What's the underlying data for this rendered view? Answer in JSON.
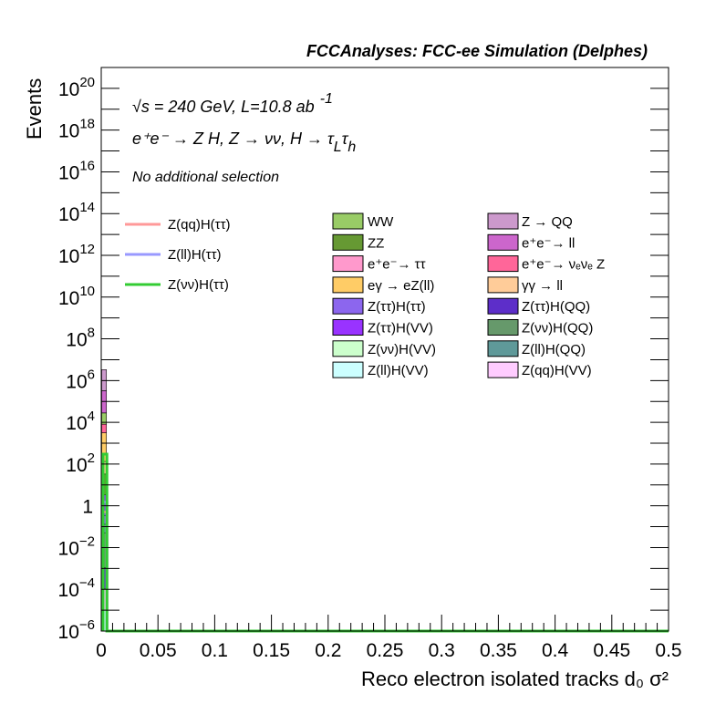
{
  "header": {
    "title": "FCCAnalyses: FCC-ee Simulation (Delphes)"
  },
  "annotations": {
    "energy_lumi": "√s = 240 GeV, L=10.8 ab",
    "energy_lumi_sup": "-1",
    "process": "e⁺e⁻ → Z H, Z → νν, H → τ",
    "process_sub1": "L",
    "process_tau2": "τ",
    "process_sub2": "h",
    "selection": "No additional selection"
  },
  "chart_data": {
    "type": "histogram",
    "title": "",
    "xlabel": "Reco electron isolated tracks d₀ σ²",
    "ylabel": "Events",
    "xlim": [
      0,
      0.5
    ],
    "ylim": [
      1e-06,
      1e+21
    ],
    "yscale": "log",
    "grid": false,
    "x_ticks": [
      "0",
      "0.05",
      "0.1",
      "0.15",
      "0.2",
      "0.25",
      "0.3",
      "0.35",
      "0.4",
      "0.45",
      "0.5"
    ],
    "y_ticks": [
      {
        "base": "10",
        "exp": "−6"
      },
      {
        "base": "10",
        "exp": "−4"
      },
      {
        "base": "10",
        "exp": "−2"
      },
      {
        "base": "1",
        "exp": ""
      },
      {
        "base": "10",
        "exp": "2"
      },
      {
        "base": "10",
        "exp": "4"
      },
      {
        "base": "10",
        "exp": "6"
      },
      {
        "base": "10",
        "exp": "8"
      },
      {
        "base": "10",
        "exp": "10"
      },
      {
        "base": "10",
        "exp": "12"
      },
      {
        "base": "10",
        "exp": "14"
      },
      {
        "base": "10",
        "exp": "16"
      },
      {
        "base": "10",
        "exp": "18"
      },
      {
        "base": "10",
        "exp": "20"
      }
    ],
    "stack_bin": [
      0,
      0.005
    ],
    "stack": [
      {
        "name": "Z(ll)H(VV)",
        "color": "#ccffff",
        "value": 1e-05
      },
      {
        "name": "Z(qq)H(VV)",
        "color": "#ffccff",
        "value": 0.0001
      },
      {
        "name": "Z(ττ)H(QQ)",
        "color": "#5d2ec9",
        "value": 0.001
      },
      {
        "name": "Z(νν)H(QQ)",
        "color": "#66996b",
        "value": 0.05
      },
      {
        "name": "Z(ll)H(QQ)",
        "color": "#5f9999",
        "value": 0.08
      },
      {
        "name": "Z(ττ)H(ττ)",
        "color": "#8c66ee",
        "value": 0.2
      },
      {
        "name": "Z(ττ)H(VV)",
        "color": "#9933ff",
        "value": 3
      },
      {
        "name": "ZZ",
        "color": "#669933",
        "value": 30
      },
      {
        "name": "γγ → ll",
        "color": "#ffcc99",
        "value": 100
      },
      {
        "name": "eγ → eZ(ll)",
        "color": "#ffcc66",
        "value": 3000
      },
      {
        "name": "e⁺e⁻→ ν_e ν_e Z",
        "color": "#ff6699",
        "value": 5000
      },
      {
        "name": "WW",
        "color": "#99cc66",
        "value": 20000
      },
      {
        "name": "e⁺e⁻→ ll",
        "color": "#cc66cc",
        "value": 300000
      },
      {
        "name": "Z → QQ",
        "color": "#cc99cc",
        "value": 3000000
      }
    ],
    "signals": [
      {
        "name": "Z(qq)H(ττ)",
        "color": "#ff9999",
        "value": 0.5
      },
      {
        "name": "Z(ll)H(ττ)",
        "color": "#9999ff",
        "value": 1.5
      },
      {
        "name": "Z(νν)H(ττ)",
        "color": "#33cc33",
        "value": 300
      }
    ],
    "legend_signals": [
      {
        "label": "Z(qq)H(ττ)",
        "color": "#ff9999"
      },
      {
        "label": "Z(ll)H(ττ)",
        "color": "#9999ff"
      },
      {
        "label": "Z(νν)H(ττ)",
        "color": "#33cc33"
      }
    ],
    "legend_col1": [
      {
        "label": "WW",
        "color": "#99cc66"
      },
      {
        "label": "ZZ",
        "color": "#669933"
      },
      {
        "label": "e⁺e⁻→ ττ",
        "color": "#ff99cc"
      },
      {
        "label": "eγ → eZ(ll)",
        "color": "#ffcc66"
      },
      {
        "label": "Z(ττ)H(ττ)",
        "color": "#8c66ee"
      },
      {
        "label": "Z(ττ)H(VV)",
        "color": "#9933ff"
      },
      {
        "label": "Z(νν)H(VV)",
        "color": "#ccffcc"
      },
      {
        "label": "Z(ll)H(VV)",
        "color": "#ccffff"
      }
    ],
    "legend_col2": [
      {
        "label": "Z → QQ",
        "color": "#cc99cc"
      },
      {
        "label": "e⁺e⁻→ ll",
        "color": "#cc66cc"
      },
      {
        "label": "e⁺e⁻→ νₑνₑ Z",
        "color": "#ff6699"
      },
      {
        "label": "γγ → ll",
        "color": "#ffcc99"
      },
      {
        "label": "Z(ττ)H(QQ)",
        "color": "#5d2ec9"
      },
      {
        "label": "Z(νν)H(QQ)",
        "color": "#66996b"
      },
      {
        "label": "Z(ll)H(QQ)",
        "color": "#5f9999"
      },
      {
        "label": "Z(qq)H(VV)",
        "color": "#ffccff"
      }
    ]
  }
}
